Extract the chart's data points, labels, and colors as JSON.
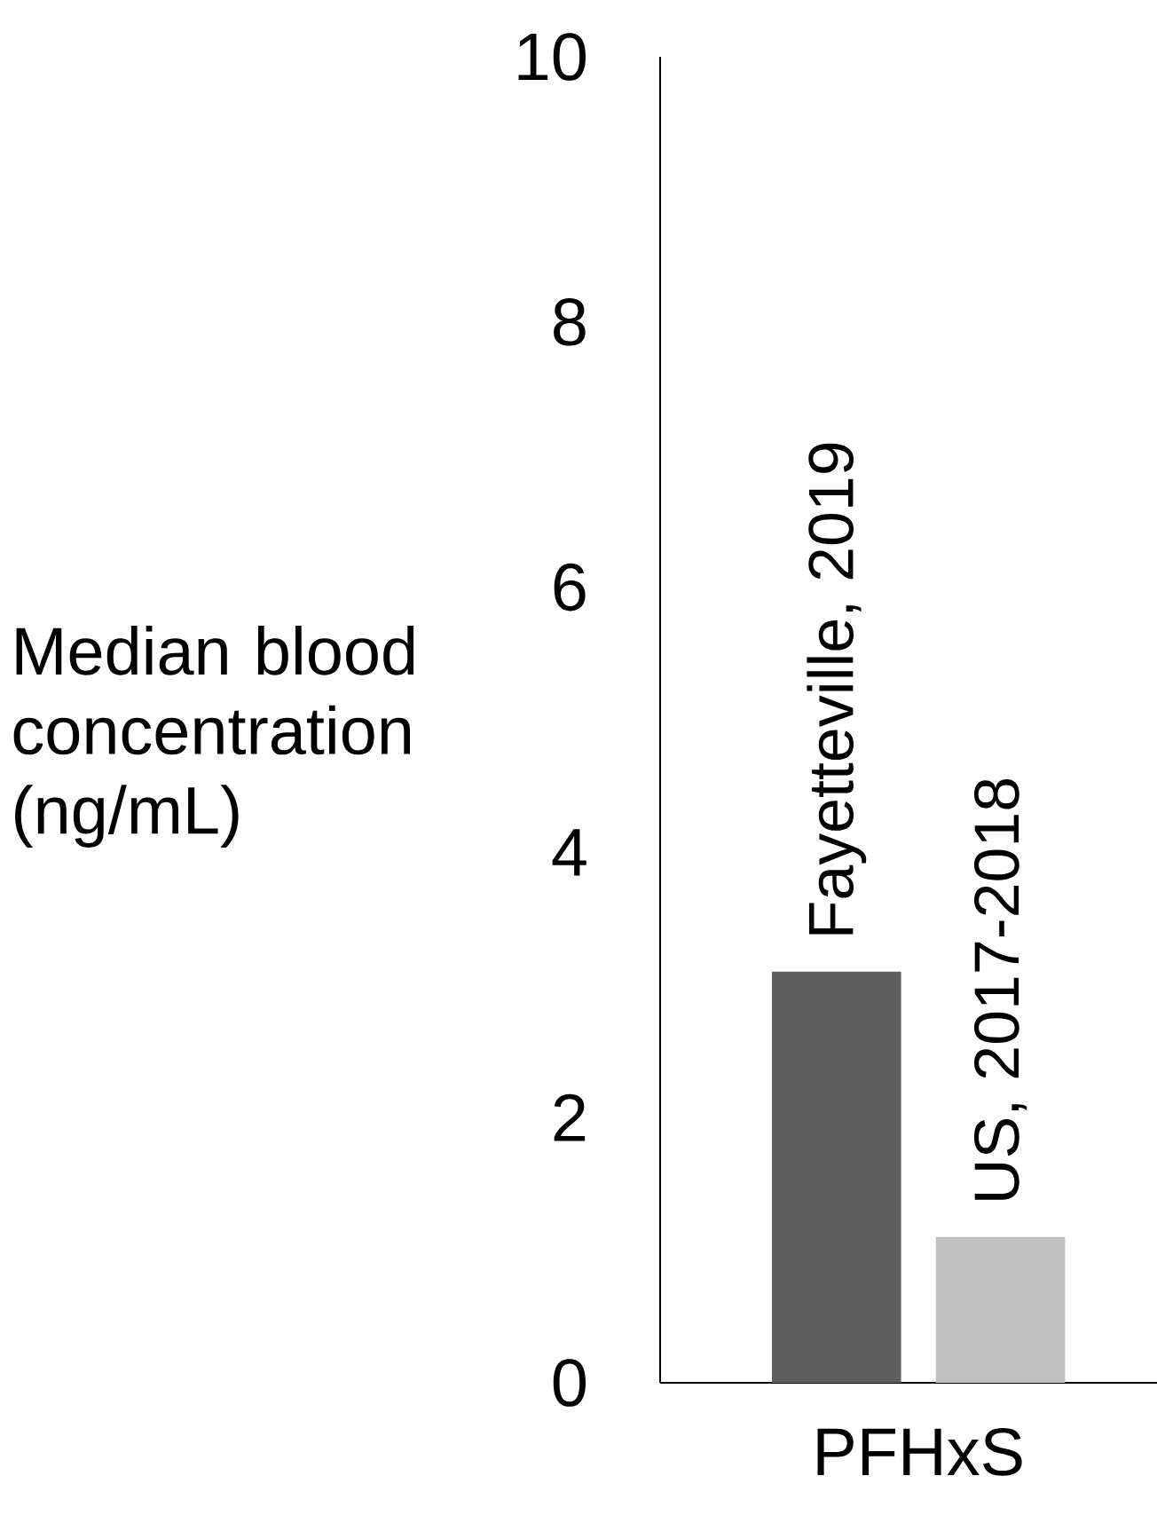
{
  "chart_data": {
    "type": "bar",
    "ylabel": "Median blood concentration (ng/mL)",
    "categories": [
      "PFHxS"
    ],
    "series": [
      {
        "name": "Fayetteville, 2019",
        "color": "#5f5f5f",
        "values": [
          3.1
        ]
      },
      {
        "name": "US, 2017-2018",
        "color": "#bfbfbf",
        "values": [
          1.1
        ]
      }
    ],
    "ylim": [
      0,
      10
    ],
    "yticks": [
      0,
      2,
      4,
      6,
      8,
      10
    ]
  }
}
